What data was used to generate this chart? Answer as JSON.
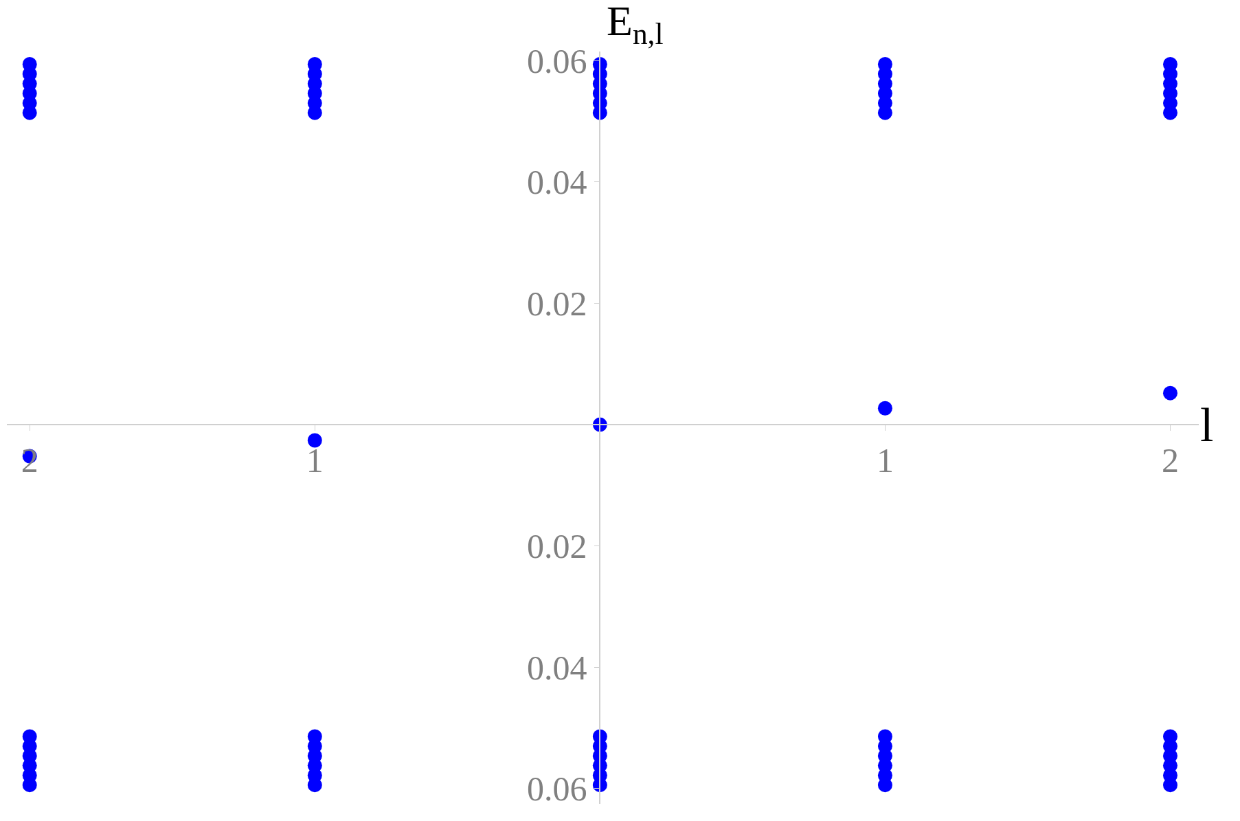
{
  "chart_data": {
    "type": "scatter",
    "xlabel": "l",
    "ylabel": "E$_{n,l}$",
    "x": [
      -2,
      -2,
      -2,
      -2,
      -2,
      -2,
      -2,
      -2,
      -2,
      -2,
      -2,
      -2,
      -2,
      -1,
      -1,
      -1,
      -1,
      -1,
      -1,
      -1,
      -1,
      -1,
      -1,
      -1,
      -1,
      -1,
      0,
      0,
      0,
      0,
      0,
      0,
      0,
      0,
      0,
      0,
      0,
      0,
      0,
      1,
      1,
      1,
      1,
      1,
      1,
      1,
      1,
      1,
      1,
      1,
      1,
      1,
      2,
      2,
      2,
      2,
      2,
      2,
      2,
      2,
      2,
      2,
      2,
      2,
      2
    ],
    "series": [
      {
        "color": "#0000ff",
        "values": [
          -0.0052,
          0.0514,
          0.053,
          0.0546,
          0.0562,
          0.0578,
          0.0594,
          -0.0514,
          -0.053,
          -0.0546,
          -0.0562,
          -0.0578,
          -0.0594,
          -0.0026,
          0.0514,
          0.053,
          0.0546,
          0.0562,
          0.0578,
          0.0594,
          -0.0514,
          -0.053,
          -0.0546,
          -0.0562,
          -0.0578,
          -0.0594,
          0,
          0.0514,
          0.053,
          0.0546,
          0.0562,
          0.0578,
          0.0594,
          -0.0514,
          -0.053,
          -0.0546,
          -0.0562,
          -0.0578,
          -0.0594,
          0.0027,
          0.0514,
          0.053,
          0.0546,
          0.0562,
          0.0578,
          0.0594,
          -0.0514,
          -0.053,
          -0.0546,
          -0.0562,
          -0.0578,
          -0.0594,
          0.0052,
          0.0514,
          0.053,
          0.0546,
          0.0562,
          0.0578,
          0.0594,
          -0.0514,
          -0.053,
          -0.0546,
          -0.0562,
          -0.0578,
          -0.0594
        ]
      }
    ],
    "xlim": [
      -2.08,
      2.1
    ],
    "ylim": [
      -0.0625,
      0.0615
    ],
    "xticks": [
      {
        "value": -2,
        "label": "2"
      },
      {
        "value": -1,
        "label": "1"
      },
      1,
      2
    ],
    "yticks": [
      {
        "value": -0.06,
        "label": "0.06"
      },
      {
        "value": -0.04,
        "label": "0.04"
      },
      {
        "value": -0.02,
        "label": "0.02"
      },
      0.02,
      0.04,
      0.06
    ],
    "marker": "circle"
  }
}
